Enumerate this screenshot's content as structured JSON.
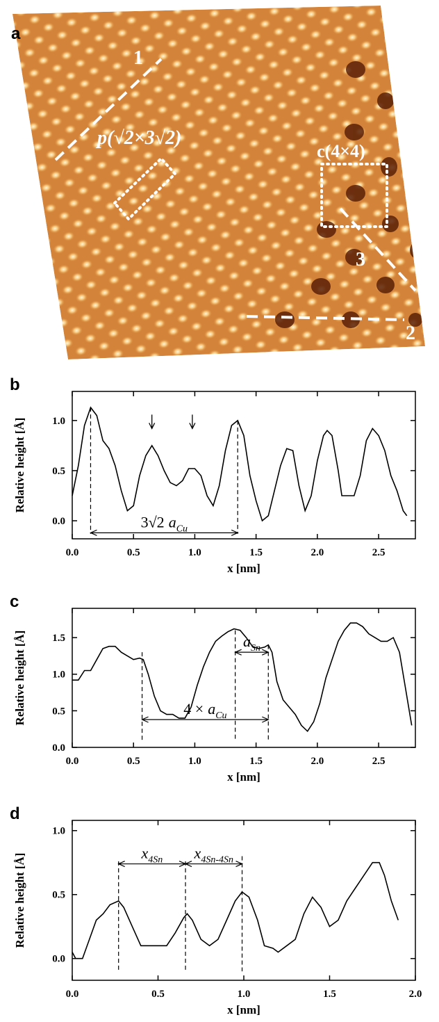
{
  "image_panel": {
    "label": "a",
    "line_labels": [
      "1",
      "3",
      "2"
    ],
    "cell_labels": [
      "p(√2×3√2)",
      "c(4×4)"
    ]
  },
  "chart_data": [
    {
      "type": "line",
      "label": "b",
      "ylabel": "Relative height [Å]",
      "xlabel": "x [nm]",
      "color": "#000000",
      "xlim": [
        0,
        2.8
      ],
      "ylim": [
        -0.18,
        1.29
      ],
      "xticks": [
        {
          "value": 0,
          "label": "0.0"
        },
        0.5,
        {
          "value": 1,
          "label": "1.0"
        },
        1.5,
        {
          "value": 2,
          "label": "2.0"
        },
        2.5
      ],
      "yticks": [
        {
          "value": 0,
          "label": "0.0"
        },
        0.5,
        {
          "value": 1,
          "label": "1.0"
        }
      ],
      "x": [
        0,
        0.05,
        0.1,
        0.15,
        0.2,
        0.25,
        0.3,
        0.35,
        0.4,
        0.45,
        0.5,
        0.55,
        0.6,
        0.65,
        0.7,
        0.75,
        0.8,
        0.85,
        0.9,
        0.95,
        1.0,
        1.05,
        1.1,
        1.15,
        1.2,
        1.25,
        1.3,
        1.35,
        1.4,
        1.45,
        1.5,
        1.55,
        1.6,
        1.65,
        1.7,
        1.75,
        1.8,
        1.85,
        1.9,
        1.95,
        2.0,
        2.05,
        2.08,
        2.12,
        2.17,
        2.2,
        2.25,
        2.3,
        2.35,
        2.4,
        2.45,
        2.5,
        2.55,
        2.6,
        2.65,
        2.7,
        2.73
      ],
      "values": [
        0.25,
        0.55,
        0.95,
        1.13,
        1.05,
        0.8,
        0.72,
        0.55,
        0.3,
        0.1,
        0.15,
        0.45,
        0.65,
        0.75,
        0.65,
        0.5,
        0.38,
        0.35,
        0.4,
        0.52,
        0.52,
        0.45,
        0.25,
        0.15,
        0.35,
        0.7,
        0.95,
        1.0,
        0.85,
        0.45,
        0.2,
        0.0,
        0.05,
        0.3,
        0.55,
        0.72,
        0.7,
        0.35,
        0.1,
        0.25,
        0.6,
        0.85,
        0.9,
        0.85,
        0.5,
        0.25,
        0.25,
        0.25,
        0.45,
        0.8,
        0.92,
        0.85,
        0.7,
        0.45,
        0.3,
        0.1,
        0.05
      ],
      "vlines": [
        {
          "x": 0.15,
          "top": 1.13,
          "bottom": -0.13
        },
        {
          "x": 1.35,
          "top": 1.0,
          "bottom": -0.13
        }
      ],
      "pointers": [
        {
          "x": 0.65,
          "y": 0.92
        },
        {
          "x": 0.98,
          "y": 0.92
        }
      ],
      "spans": [
        {
          "from": 0.15,
          "to": 1.35,
          "y": -0.12,
          "lead": "3√2",
          "var": "a",
          "sub": "Cu"
        }
      ]
    },
    {
      "type": "line",
      "label": "c",
      "ylabel": "Relative height [Å]",
      "xlabel": "x [nm]",
      "color": "#000000",
      "xlim": [
        0,
        2.8
      ],
      "ylim": [
        0,
        1.9
      ],
      "xticks": [
        {
          "value": 0,
          "label": "0.0"
        },
        0.5,
        {
          "value": 1,
          "label": "1.0"
        },
        1.5,
        {
          "value": 2,
          "label": "2.0"
        },
        2.5
      ],
      "yticks": [
        {
          "value": 0,
          "label": "0.0"
        },
        0.5,
        {
          "value": 1,
          "label": "1.0"
        },
        1.5
      ],
      "x": [
        0,
        0.05,
        0.1,
        0.15,
        0.2,
        0.25,
        0.3,
        0.35,
        0.4,
        0.45,
        0.5,
        0.55,
        0.58,
        0.62,
        0.67,
        0.72,
        0.77,
        0.82,
        0.87,
        0.92,
        0.97,
        1.02,
        1.07,
        1.12,
        1.17,
        1.22,
        1.27,
        1.32,
        1.37,
        1.42,
        1.47,
        1.52,
        1.57,
        1.6,
        1.63,
        1.67,
        1.72,
        1.77,
        1.82,
        1.87,
        1.92,
        1.97,
        2.02,
        2.07,
        2.12,
        2.17,
        2.22,
        2.27,
        2.32,
        2.37,
        2.42,
        2.47,
        2.52,
        2.57,
        2.62,
        2.67,
        2.72,
        2.77
      ],
      "values": [
        0.92,
        0.92,
        1.05,
        1.05,
        1.2,
        1.35,
        1.38,
        1.38,
        1.3,
        1.25,
        1.2,
        1.22,
        1.2,
        1.0,
        0.7,
        0.5,
        0.45,
        0.45,
        0.4,
        0.4,
        0.55,
        0.85,
        1.1,
        1.3,
        1.45,
        1.52,
        1.58,
        1.62,
        1.6,
        1.5,
        1.38,
        1.35,
        1.37,
        1.4,
        1.3,
        0.9,
        0.65,
        0.55,
        0.45,
        0.3,
        0.22,
        0.35,
        0.6,
        0.95,
        1.2,
        1.45,
        1.6,
        1.7,
        1.7,
        1.65,
        1.55,
        1.5,
        1.45,
        1.45,
        1.5,
        1.3,
        0.8,
        0.3
      ],
      "vlines": [
        {
          "x": 0.57,
          "top": 1.3,
          "bottom": 0.1
        },
        {
          "x": 1.33,
          "top": 1.6,
          "bottom": 0.1
        },
        {
          "x": 1.6,
          "top": 1.4,
          "bottom": 0.1
        }
      ],
      "pointers": [],
      "spans": [
        {
          "from": 1.33,
          "to": 1.6,
          "y": 1.3,
          "var": "a",
          "sub": "Sn"
        },
        {
          "from": 0.57,
          "to": 1.6,
          "y": 0.38,
          "lead": "4 ×",
          "var": "a",
          "sub": "Cu"
        }
      ]
    },
    {
      "type": "line",
      "label": "d",
      "ylabel": "Relative height [Å]",
      "xlabel": "x [nm]",
      "color": "#000000",
      "xlim": [
        0,
        2
      ],
      "ylim": [
        -0.17,
        1.08
      ],
      "xticks": [
        {
          "value": 0,
          "label": "0.0"
        },
        0.5,
        {
          "value": 1,
          "label": "1.0"
        },
        1.5,
        {
          "value": 2,
          "label": "2.0"
        }
      ],
      "yticks": [
        {
          "value": 0,
          "label": "0.0"
        },
        0.5,
        {
          "value": 1,
          "label": "1.0"
        }
      ],
      "x": [
        0,
        0.02,
        0.06,
        0.1,
        0.14,
        0.18,
        0.22,
        0.27,
        0.3,
        0.35,
        0.4,
        0.45,
        0.5,
        0.55,
        0.6,
        0.65,
        0.67,
        0.7,
        0.75,
        0.8,
        0.85,
        0.9,
        0.95,
        0.99,
        1.03,
        1.08,
        1.12,
        1.17,
        1.2,
        1.25,
        1.3,
        1.35,
        1.4,
        1.45,
        1.5,
        1.55,
        1.6,
        1.65,
        1.7,
        1.75,
        1.79,
        1.82,
        1.86,
        1.9
      ],
      "values": [
        0.05,
        0.0,
        0.0,
        0.15,
        0.3,
        0.35,
        0.42,
        0.45,
        0.4,
        0.25,
        0.1,
        0.1,
        0.1,
        0.1,
        0.2,
        0.32,
        0.35,
        0.3,
        0.15,
        0.1,
        0.15,
        0.3,
        0.45,
        0.52,
        0.48,
        0.3,
        0.1,
        0.08,
        0.05,
        0.1,
        0.15,
        0.35,
        0.48,
        0.4,
        0.25,
        0.3,
        0.45,
        0.55,
        0.65,
        0.75,
        0.75,
        0.65,
        0.45,
        0.3
      ],
      "vlines": [
        {
          "x": 0.27,
          "top": 0.76,
          "bottom": -0.1
        },
        {
          "x": 0.66,
          "top": 0.76,
          "bottom": -0.1
        },
        {
          "x": 0.99,
          "top": 0.8,
          "bottom": -0.1
        }
      ],
      "pointers": [],
      "spans": [
        {
          "from": 0.27,
          "to": 0.66,
          "y": 0.74,
          "var": "x",
          "sub": "4Sn"
        },
        {
          "from": 0.66,
          "to": 0.99,
          "y": 0.74,
          "var": "x",
          "sub": "4Sn-4Sn"
        }
      ]
    }
  ]
}
